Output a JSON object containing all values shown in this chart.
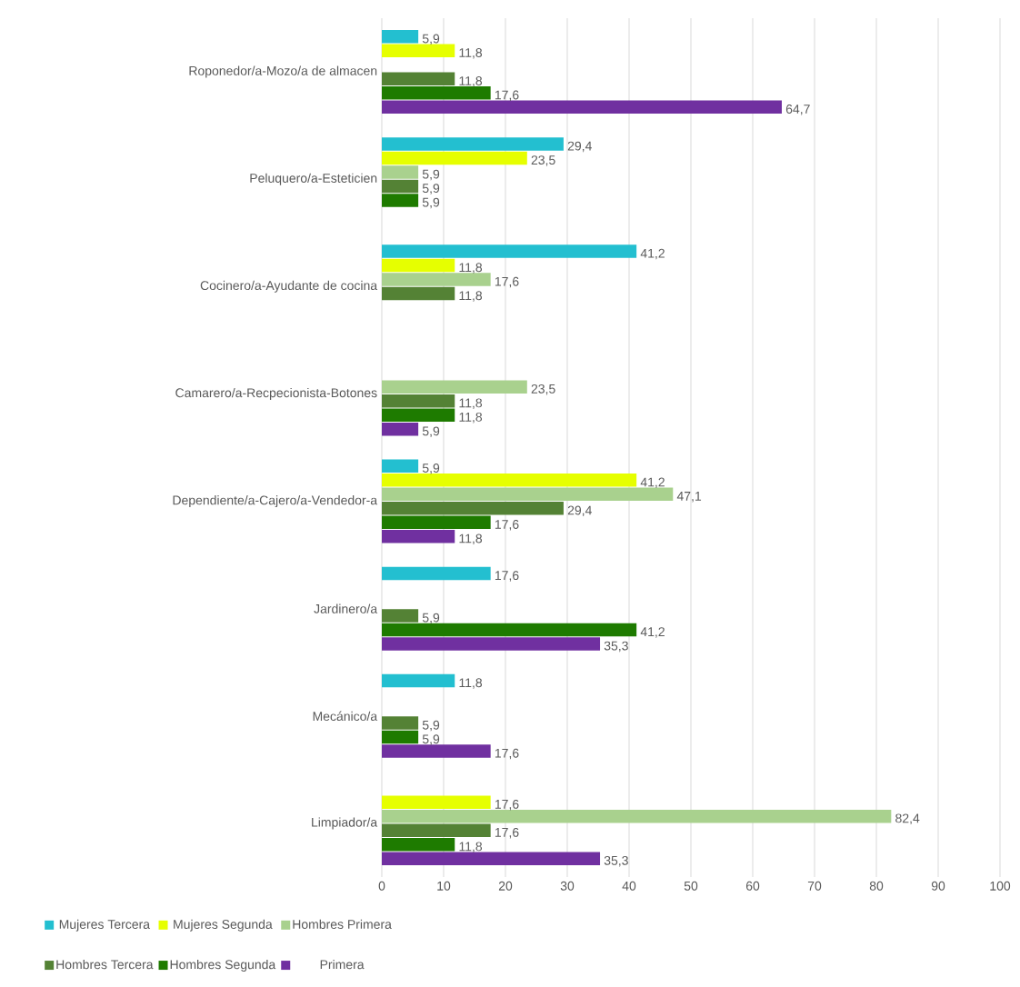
{
  "chart_data": {
    "type": "bar",
    "orientation": "horizontal",
    "categories": [
      "Roponedor/a-Mozo/a de almacen",
      "Peluquero/a-Esteticien",
      "Cocinero/a-Ayudante de cocina",
      "Camarero/a-Recpecionista-Botones",
      "Dependiente/a-Cajero/a-Vendedor-a",
      "Jardinero/a",
      "Mecánico/a",
      "Limpiador/a"
    ],
    "series": [
      {
        "name": "Mujeres Tercera",
        "color": "#23bfd0",
        "values": [
          5.9,
          29.4,
          41.2,
          null,
          5.9,
          17.6,
          11.8,
          null
        ],
        "value_labels": [
          "5,9",
          "29,4",
          "41,2",
          null,
          "5,9",
          "17,6",
          "11,8",
          null
        ]
      },
      {
        "name": "Mujeres Segunda",
        "color": "#e6ff00",
        "values": [
          11.8,
          23.5,
          11.8,
          null,
          41.2,
          null,
          null,
          17.6
        ],
        "value_labels": [
          "11,8",
          "23,5",
          "11,8",
          null,
          "41,2",
          null,
          null,
          "17,6"
        ]
      },
      {
        "name": "Hombres Primera",
        "color": "#a9d18e",
        "values": [
          null,
          5.9,
          17.6,
          23.5,
          47.1,
          null,
          null,
          82.4
        ],
        "value_labels": [
          null,
          "5,9",
          "17,6",
          "23,5",
          "47,1",
          null,
          null,
          "82,4"
        ]
      },
      {
        "name": "Hombres Tercera",
        "color": "#548235",
        "values": [
          11.8,
          5.9,
          11.8,
          11.8,
          29.4,
          5.9,
          5.9,
          17.6
        ],
        "value_labels": [
          "11,8",
          "5,9",
          "11,8",
          "11,8",
          "29,4",
          "5,9",
          "5,9",
          "17,6"
        ]
      },
      {
        "name": "Hombres Segunda",
        "color": "#1e7b00",
        "values": [
          17.6,
          5.9,
          null,
          11.8,
          17.6,
          41.2,
          5.9,
          11.8
        ],
        "value_labels": [
          "17,6",
          "5,9",
          null,
          "11,8",
          "17,6",
          "41,2",
          "5,9",
          "11,8"
        ]
      },
      {
        "name": "Primera",
        "color": "#7030a0",
        "values": [
          64.7,
          null,
          null,
          5.9,
          11.8,
          35.3,
          17.6,
          35.3
        ],
        "value_labels": [
          "64,7",
          null,
          null,
          "5,9",
          "11,8",
          "35,3",
          "17,6",
          "35,3"
        ]
      }
    ],
    "xlim": [
      0,
      100
    ],
    "xticks": [
      0,
      10,
      20,
      30,
      40,
      50,
      60,
      70,
      80,
      90,
      100
    ],
    "grid": "x",
    "legend": "bottom"
  }
}
